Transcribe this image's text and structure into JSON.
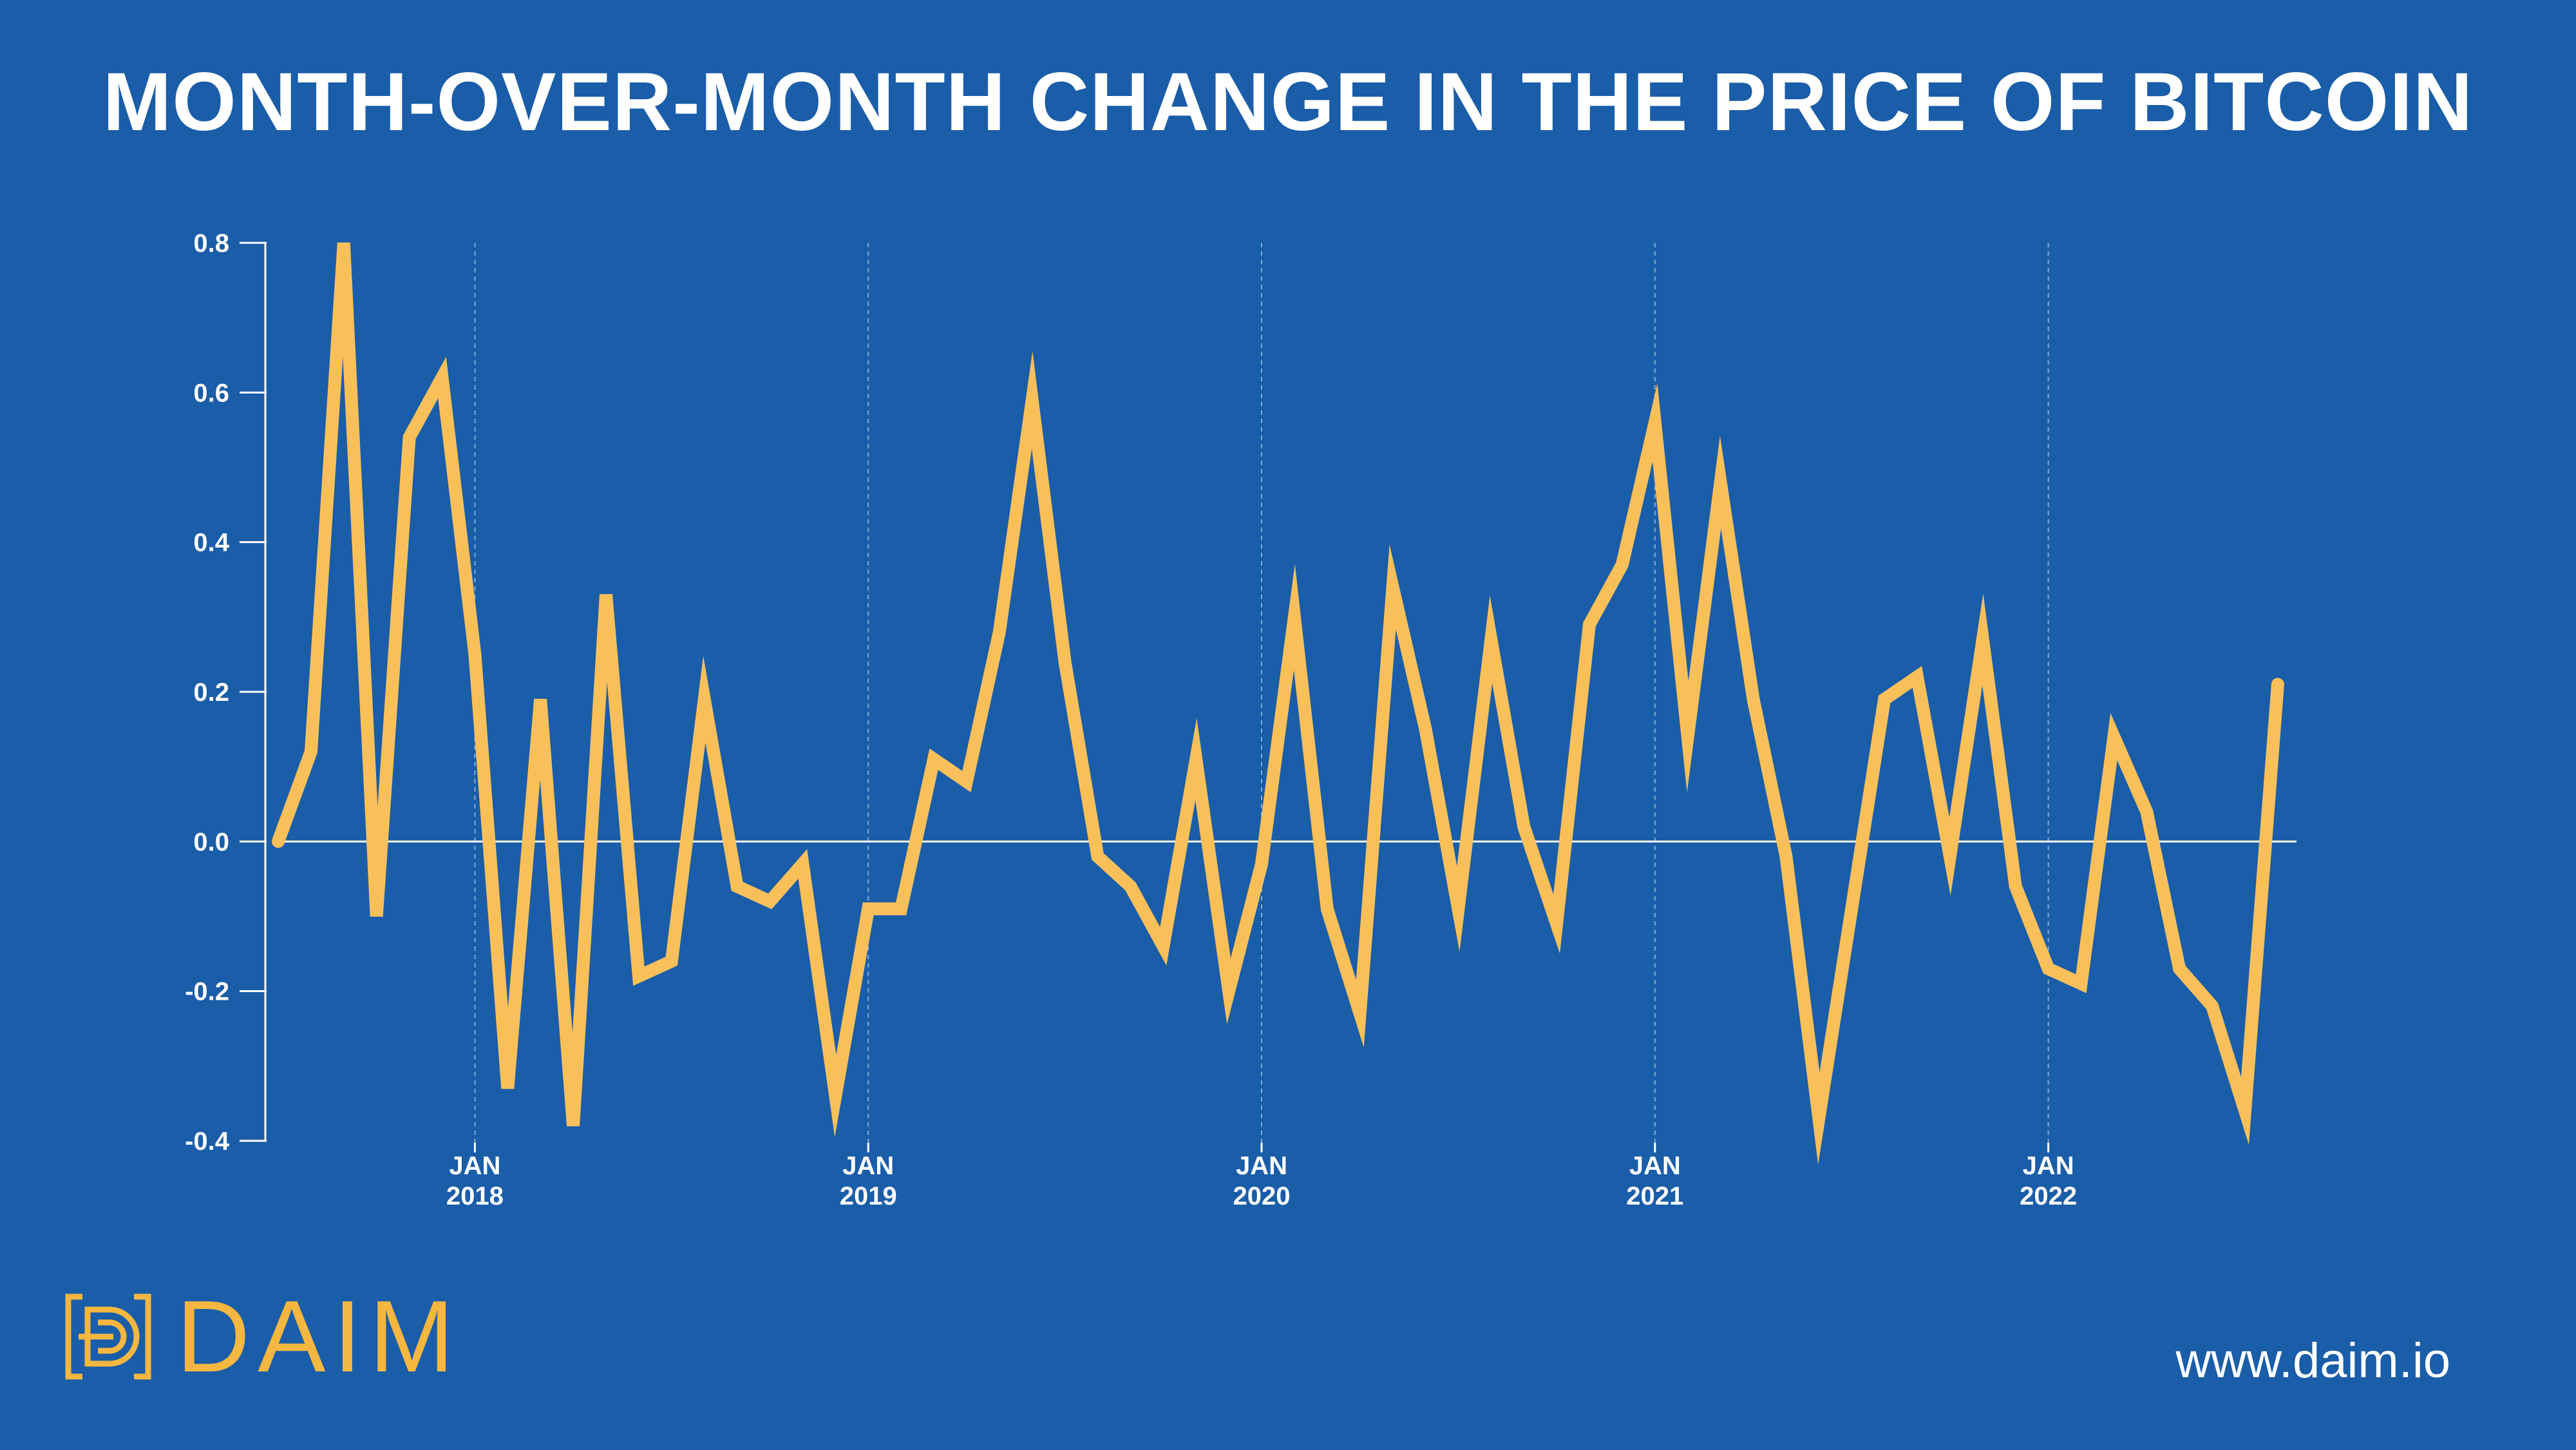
{
  "header": {
    "title": "MONTH-OVER-MONTH CHANGE IN THE PRICE OF BITCOIN"
  },
  "chart_data": {
    "type": "line",
    "title": "MONTH-OVER-MONTH CHANGE IN THE PRICE OF BITCOIN",
    "xlabel": "",
    "ylabel": "",
    "ylim": [
      -0.4,
      0.8
    ],
    "yticks": [
      -0.4,
      -0.2,
      0.0,
      0.2,
      0.4,
      0.6,
      0.8
    ],
    "ytick_labels": [
      "-0.4",
      "-0.2",
      "0.0",
      "0.2",
      "0.4",
      "0.6",
      "0.8"
    ],
    "x_start": "2017-07",
    "xtick_labels": [
      {
        "month": "JAN",
        "year": "2018",
        "index": 6
      },
      {
        "month": "JAN",
        "year": "2019",
        "index": 18
      },
      {
        "month": "JAN",
        "year": "2020",
        "index": 30
      },
      {
        "month": "JAN",
        "year": "2021",
        "index": 42
      },
      {
        "month": "JAN",
        "year": "2022",
        "index": 54
      }
    ],
    "grid": "vertical dashed at January ticks",
    "zero_line": true,
    "line_color": "#f9c05a",
    "series": [
      {
        "name": "Month-over-month change",
        "values": [
          0.0,
          0.12,
          0.8,
          -0.1,
          0.54,
          0.62,
          0.25,
          -0.33,
          0.19,
          -0.38,
          0.33,
          -0.18,
          -0.16,
          0.19,
          -0.06,
          -0.08,
          -0.03,
          -0.34,
          -0.09,
          -0.09,
          0.11,
          0.08,
          0.28,
          0.59,
          0.24,
          -0.02,
          -0.06,
          -0.14,
          0.11,
          -0.2,
          -0.03,
          0.3,
          -0.09,
          -0.23,
          0.34,
          0.15,
          -0.09,
          0.27,
          0.02,
          -0.11,
          0.29,
          0.37,
          0.56,
          0.14,
          0.48,
          0.19,
          -0.02,
          -0.37,
          -0.09,
          0.19,
          0.22,
          -0.02,
          0.27,
          -0.06,
          -0.17,
          -0.19,
          0.14,
          0.04,
          -0.17,
          -0.22,
          -0.36,
          0.21
        ]
      }
    ]
  },
  "brand": {
    "logo_text": "DAIM",
    "website": "www.daim.io"
  },
  "colors": {
    "background": "#1a5da8",
    "line": "#f9c05a",
    "brand": "#f5b740",
    "text": "#ffffff"
  }
}
